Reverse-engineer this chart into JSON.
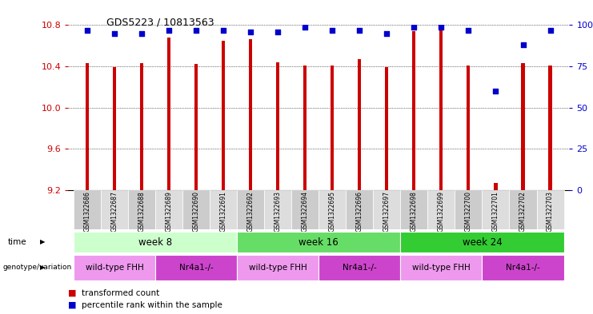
{
  "title": "GDS5223 / 10813563",
  "samples": [
    "GSM1322686",
    "GSM1322687",
    "GSM1322688",
    "GSM1322689",
    "GSM1322690",
    "GSM1322691",
    "GSM1322692",
    "GSM1322693",
    "GSM1322694",
    "GSM1322695",
    "GSM1322696",
    "GSM1322697",
    "GSM1322698",
    "GSM1322699",
    "GSM1322700",
    "GSM1322701",
    "GSM1322702",
    "GSM1322703"
  ],
  "transformed_count": [
    10.43,
    10.39,
    10.43,
    10.68,
    10.42,
    10.65,
    10.66,
    10.44,
    10.41,
    10.41,
    10.47,
    10.39,
    10.74,
    10.76,
    10.41,
    9.27,
    10.43,
    10.41
  ],
  "percentile_rank": [
    97,
    95,
    95,
    97,
    97,
    97,
    96,
    96,
    99,
    97,
    97,
    95,
    99,
    99,
    97,
    60,
    88,
    97
  ],
  "ylim_left": [
    9.2,
    10.8
  ],
  "ylim_right": [
    0,
    100
  ],
  "yticks_left": [
    9.2,
    9.6,
    10.0,
    10.4,
    10.8
  ],
  "yticks_right": [
    0,
    25,
    50,
    75,
    100
  ],
  "ytick_labels_right": [
    "0",
    "25",
    "50",
    "75",
    "100%"
  ],
  "bar_color": "#cc0000",
  "dot_color": "#0000cc",
  "bar_bottom": 9.2,
  "time_groups": [
    {
      "label": "week 8",
      "start": 0,
      "end": 6,
      "color": "#ccffcc"
    },
    {
      "label": "week 16",
      "start": 6,
      "end": 12,
      "color": "#66dd66"
    },
    {
      "label": "week 24",
      "start": 12,
      "end": 18,
      "color": "#33cc33"
    }
  ],
  "genotype_groups": [
    {
      "label": "wild-type FHH",
      "start": 0,
      "end": 3,
      "color": "#ee99ee"
    },
    {
      "label": "Nr4a1-/-",
      "start": 3,
      "end": 6,
      "color": "#cc44cc"
    },
    {
      "label": "wild-type FHH",
      "start": 6,
      "end": 9,
      "color": "#ee99ee"
    },
    {
      "label": "Nr4a1-/-",
      "start": 9,
      "end": 12,
      "color": "#cc44cc"
    },
    {
      "label": "wild-type FHH",
      "start": 12,
      "end": 15,
      "color": "#ee99ee"
    },
    {
      "label": "Nr4a1-/-",
      "start": 15,
      "end": 18,
      "color": "#cc44cc"
    }
  ],
  "legend_items": [
    {
      "label": "transformed count",
      "color": "#cc0000"
    },
    {
      "label": "percentile rank within the sample",
      "color": "#0000cc"
    }
  ],
  "background_color": "#ffffff",
  "sample_box_colors": [
    "#cccccc",
    "#dddddd"
  ]
}
